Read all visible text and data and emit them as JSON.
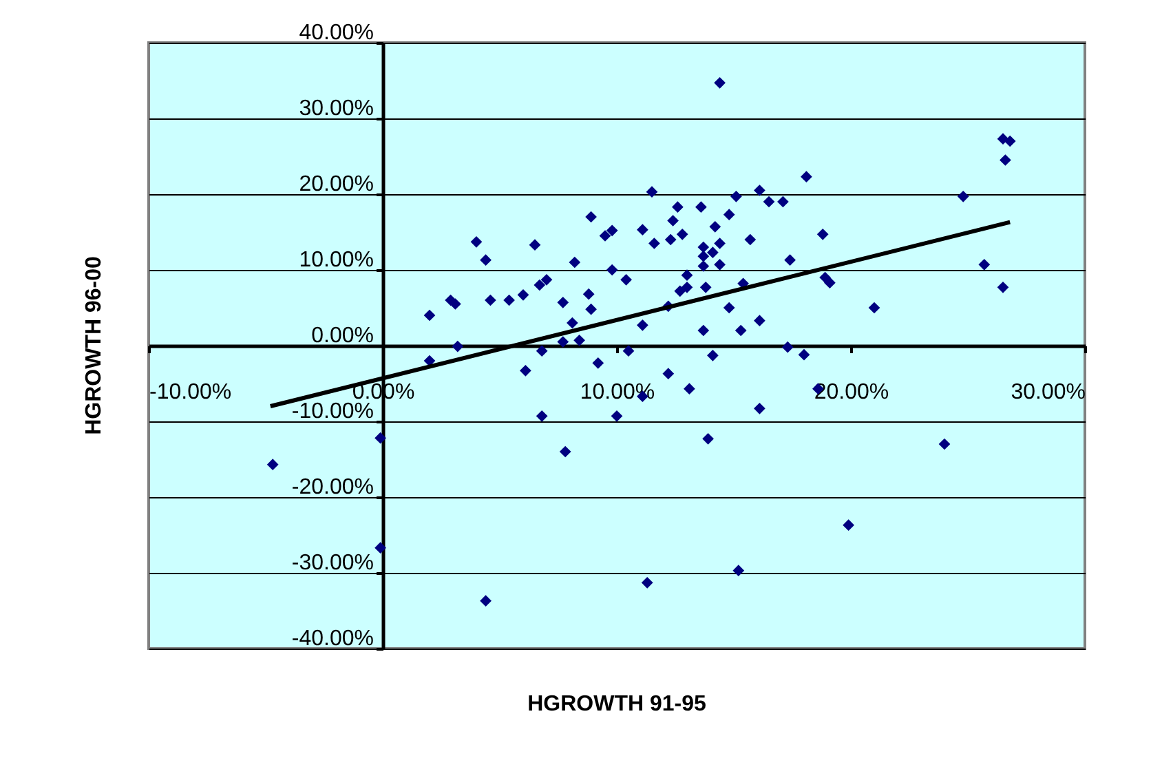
{
  "chart_data": {
    "type": "scatter",
    "xlabel": "HGROWTH 91-95",
    "ylabel": "HGROWTH 96-00",
    "xlim": [
      -10,
      30
    ],
    "ylim": [
      -40,
      40
    ],
    "xticks": [
      {
        "value": -10,
        "label": "-10.00%"
      },
      {
        "value": 0,
        "label": "0.00%"
      },
      {
        "value": 10,
        "label": "10.00%"
      },
      {
        "value": 20,
        "label": "20.00%"
      },
      {
        "value": 30,
        "label": "30.00%"
      }
    ],
    "yticks": [
      {
        "value": -40,
        "label": "-40.00%"
      },
      {
        "value": -30,
        "label": "-30.00%"
      },
      {
        "value": -20,
        "label": "-20.00%"
      },
      {
        "value": -10,
        "label": "-10.00%"
      },
      {
        "value": 0,
        "label": "0.00%"
      },
      {
        "value": 10,
        "label": "10.00%"
      },
      {
        "value": 20,
        "label": "20.00%"
      },
      {
        "value": 30,
        "label": "30.00%"
      },
      {
        "value": 40,
        "label": "40.00%"
      }
    ],
    "grid": "y",
    "series": [
      {
        "color": "#000080",
        "marker": "diamond",
        "x": [
          -4.7,
          -0.1,
          -0.1,
          2.0,
          3.2,
          2.0,
          2.9,
          3.1,
          4.0,
          14.4,
          4.4,
          6.5,
          4.6,
          5.4,
          6.0,
          6.7,
          7.0,
          7.7,
          8.1,
          8.8,
          8.9,
          8.2,
          8.9,
          9.5,
          9.8,
          9.8,
          10.4,
          11.1,
          11.5,
          11.6,
          12.3,
          12.8,
          12.4,
          12.6,
          11.1,
          12.2,
          12.7,
          13.0,
          13.0,
          13.6,
          13.7,
          14.1,
          13.7,
          14.2,
          14.4,
          13.7,
          14.4,
          13.8,
          14.8,
          15.1,
          16.1,
          16.5,
          15.7,
          15.4,
          14.8,
          13.7,
          15.3,
          16.1,
          7.7,
          8.4,
          6.1,
          6.8,
          9.2,
          10.5,
          12.2,
          13.1,
          14.1,
          11.1,
          10.0,
          6.8,
          7.8,
          13.9,
          16.1,
          4.4,
          11.3,
          15.2,
          17.3,
          18.0,
          18.6,
          24.0,
          19.9,
          17.1,
          18.1,
          18.8,
          17.4,
          18.9,
          19.1,
          21.0,
          24.8,
          25.7,
          26.5,
          26.5,
          26.8,
          26.6
        ],
        "values": [
          -15.7,
          -12.2,
          -26.7,
          -2.0,
          -0.1,
          4.0,
          6.0,
          5.5,
          13.7,
          34.7,
          11.3,
          13.3,
          6.0,
          6.0,
          6.7,
          8.0,
          8.7,
          5.7,
          3.0,
          6.8,
          4.8,
          11.0,
          17.0,
          14.5,
          15.2,
          10.0,
          8.7,
          15.3,
          20.3,
          13.5,
          14.0,
          14.7,
          16.5,
          18.3,
          2.7,
          5.2,
          7.2,
          7.7,
          9.3,
          18.3,
          13.0,
          12.3,
          11.8,
          15.7,
          13.5,
          10.5,
          10.7,
          7.7,
          17.3,
          19.7,
          20.5,
          19.0,
          14.0,
          8.2,
          5.0,
          2.0,
          2.0,
          3.3,
          0.5,
          0.7,
          -3.3,
          -0.7,
          -2.3,
          -0.7,
          -3.7,
          -5.7,
          -1.3,
          -6.7,
          -9.3,
          -9.3,
          -14.0,
          -12.3,
          -8.3,
          -33.7,
          -31.3,
          -29.7,
          -0.2,
          -1.2,
          -5.7,
          -13.0,
          -23.7,
          19.0,
          22.3,
          14.7,
          11.3,
          9.0,
          8.3,
          5.0,
          19.7,
          10.7,
          7.7,
          27.3,
          27.0,
          24.5
        ]
      },
      {
        "type": "line",
        "color": "#000000",
        "line_style": "solid",
        "marker": "none",
        "x": [
          -4.8,
          26.8
        ],
        "values": [
          -8.0,
          16.3
        ]
      }
    ]
  }
}
